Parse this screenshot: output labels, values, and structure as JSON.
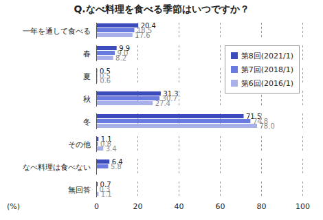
{
  "chart_data": {
    "type": "bar",
    "title": "Q.なべ料理を食べる季節はいつですか？",
    "orientation": "horizontal",
    "categories": [
      "一年を通して食べる",
      "春",
      "夏",
      "秋",
      "冬",
      "その他",
      "なべ料理は食べない",
      "無回答"
    ],
    "series": [
      {
        "name": "第8回(2021/1)",
        "color": "#3c4cbc",
        "values": [
          20.4,
          9.9,
          0.5,
          31.3,
          71.5,
          1.1,
          6.4,
          0.7
        ],
        "value_labels": [
          "20.4",
          "9.9",
          "0.5",
          "31.3",
          "71.5",
          "1.1",
          "6.4",
          "0.7"
        ]
      },
      {
        "name": "第7回(2018/1)",
        "color": "#6a7be0",
        "values": [
          18.5,
          9.0,
          0.5,
          30.7,
          74.8,
          0.8,
          5.8,
          0.3
        ],
        "value_labels": [
          "18.5",
          "9.0",
          "0.5",
          "30.7",
          "74.8",
          "0.8",
          "5.8",
          "0.3"
        ]
      },
      {
        "name": "第6回(2016/1)",
        "color": "#a8b0ea",
        "values": [
          17.6,
          8.2,
          0.6,
          27.4,
          78.0,
          3.4,
          null,
          1.1
        ],
        "value_labels": [
          "17.6",
          "8.2",
          "0.6",
          "27.4",
          "78.0",
          "3.4",
          null,
          "1.1"
        ]
      }
    ],
    "xlabel": "(%)",
    "xlim": [
      0,
      100
    ],
    "xticks": [
      0,
      20,
      40,
      60,
      80,
      100
    ],
    "grid": true,
    "data_labels": true,
    "legend": "upper right"
  }
}
